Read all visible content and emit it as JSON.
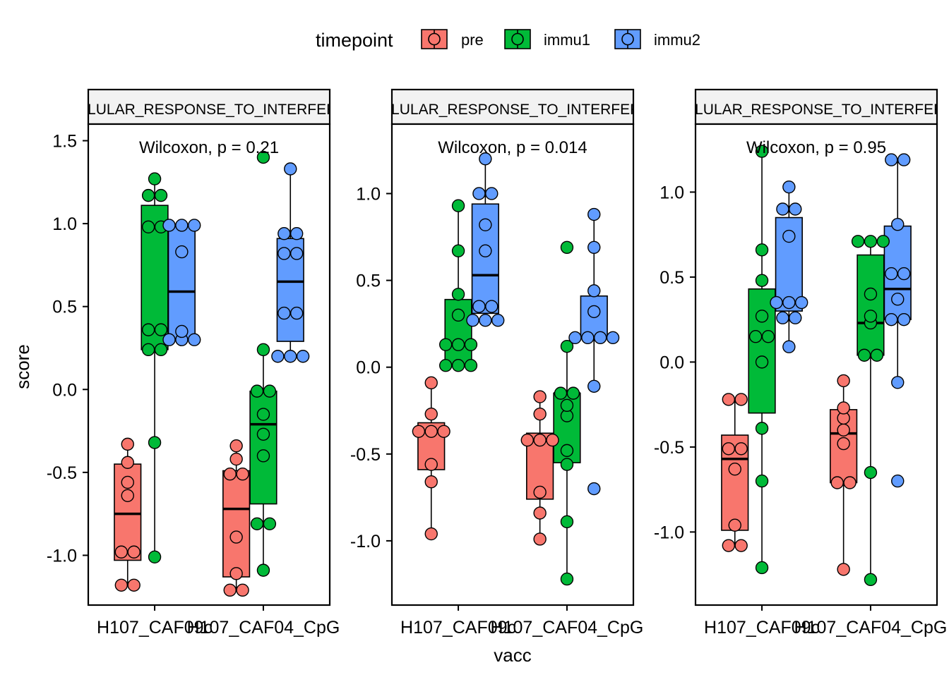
{
  "legend": {
    "title": "timepoint",
    "items": [
      {
        "label": "pre",
        "color": "#F8766D"
      },
      {
        "label": "immu1",
        "color": "#00BA38"
      },
      {
        "label": "immu2",
        "color": "#619CFF"
      }
    ]
  },
  "axis_titles": {
    "x": "vacc",
    "y": "score"
  },
  "chart_data": [
    {
      "type": "box",
      "strip_label": "CELLULAR_RESPONSE_TO_INTERFERON",
      "annotation": "Wilcoxon, p = 0.21",
      "categories": [
        "H107_CAF09c",
        "H107_CAF04_CpG"
      ],
      "ylim": [
        -1.3,
        1.6
      ],
      "yticks": [
        -1.0,
        -0.5,
        0.0,
        0.5,
        1.0,
        1.5
      ],
      "ytick_labels": [
        "-1.0",
        "-0.5",
        "0.0",
        "0.5",
        "1.0",
        "1.5"
      ],
      "series": [
        {
          "name": "pre",
          "points": [
            [
              -1.18,
              -1.18,
              -0.98,
              -0.98,
              -0.64,
              -0.56,
              -0.44,
              -0.33
            ],
            [
              -1.21,
              -1.21,
              -1.11,
              -0.89,
              -0.51,
              -0.51,
              -0.42,
              -0.34
            ]
          ],
          "box": [
            [
              -1.03,
              -0.75,
              -0.45,
              -1.18,
              -0.33
            ],
            [
              -1.13,
              -0.72,
              -0.49,
              -1.21,
              -0.34
            ]
          ]
        },
        {
          "name": "immu1",
          "points": [
            [
              -1.01,
              -0.32,
              0.24,
              0.24,
              0.36,
              0.36,
              0.98,
              0.98,
              1.17,
              1.17,
              1.27
            ],
            [
              -1.09,
              -0.81,
              -0.81,
              -0.4,
              -0.27,
              -0.15,
              -0.01,
              -0.01,
              0.24,
              1.4
            ]
          ],
          "box": [
            [
              0.24,
              0.36,
              1.11,
              -1.01,
              1.27
            ],
            [
              -0.69,
              -0.21,
              -0.01,
              -1.09,
              0.24
            ]
          ]
        },
        {
          "name": "immu2",
          "points": [
            [
              0.3,
              0.3,
              0.3,
              0.35,
              0.83,
              0.99,
              0.99,
              0.99
            ],
            [
              0.2,
              0.2,
              0.2,
              0.46,
              0.46,
              0.82,
              0.82,
              0.94,
              0.94,
              1.33
            ]
          ],
          "box": [
            [
              0.3,
              0.59,
              0.99,
              0.3,
              0.99
            ],
            [
              0.29,
              0.65,
              0.91,
              0.2,
              1.33
            ]
          ]
        }
      ]
    },
    {
      "type": "box",
      "strip_label": "CELLULAR_RESPONSE_TO_INTERFERON",
      "annotation": "Wilcoxon, p = 0.014",
      "categories": [
        "H107_CAF09c",
        "H107_CAF04_CpG"
      ],
      "ylim": [
        -1.37,
        1.4
      ],
      "yticks": [
        -1.0,
        -0.5,
        0.0,
        0.5,
        1.0
      ],
      "ytick_labels": [
        "-1.0",
        "-0.5",
        "0.0",
        "0.5",
        "1.0"
      ],
      "series": [
        {
          "name": "pre",
          "points": [
            [
              -0.96,
              -0.66,
              -0.56,
              -0.37,
              -0.37,
              -0.37,
              -0.27,
              -0.09
            ],
            [
              -0.99,
              -0.84,
              -0.72,
              -0.42,
              -0.42,
              -0.42,
              -0.27,
              -0.17
            ]
          ],
          "box": [
            [
              -0.59,
              -0.37,
              -0.32,
              -0.96,
              -0.09
            ],
            [
              -0.76,
              -0.42,
              -0.38,
              -0.99,
              -0.17
            ]
          ]
        },
        {
          "name": "immu1",
          "points": [
            [
              0.01,
              0.01,
              0.01,
              0.13,
              0.13,
              0.13,
              0.3,
              0.42,
              0.67,
              0.93
            ],
            [
              -1.22,
              -0.89,
              -0.56,
              -0.48,
              -0.28,
              -0.22,
              -0.15,
              -0.15,
              0.12,
              0.69
            ]
          ],
          "box": [
            [
              0.01,
              0.13,
              0.39,
              0.01,
              0.93
            ],
            [
              -0.55,
              -0.15,
              -0.15,
              -1.22,
              0.12
            ]
          ]
        },
        {
          "name": "immu2",
          "points": [
            [
              0.27,
              0.27,
              0.27,
              0.35,
              0.35,
              0.67,
              0.82,
              1.0,
              1.0,
              1.2
            ],
            [
              -0.7,
              -0.11,
              0.17,
              0.17,
              0.17,
              0.17,
              0.32,
              0.44,
              0.69,
              0.88
            ]
          ],
          "box": [
            [
              0.31,
              0.53,
              0.94,
              0.27,
              1.2
            ],
            [
              0.17,
              0.17,
              0.41,
              -0.11,
              0.88
            ]
          ]
        }
      ]
    },
    {
      "type": "box",
      "strip_label": "CELLULAR_RESPONSE_TO_INTERFERON",
      "annotation": "Wilcoxon, p = 0.95",
      "categories": [
        "H107_CAF09c",
        "H107_CAF04_CpG"
      ],
      "ylim": [
        -1.43,
        1.4
      ],
      "yticks": [
        -1.0,
        -0.5,
        0.0,
        0.5,
        1.0
      ],
      "ytick_labels": [
        "-1.0",
        "-0.5",
        "0.0",
        "0.5",
        "1.0"
      ],
      "series": [
        {
          "name": "pre",
          "points": [
            [
              -1.08,
              -1.08,
              -0.96,
              -0.63,
              -0.51,
              -0.51,
              -0.22,
              -0.22
            ],
            [
              -1.22,
              -0.71,
              -0.71,
              -0.48,
              -0.4,
              -0.33,
              -0.27,
              -0.11
            ]
          ],
          "box": [
            [
              -0.99,
              -0.57,
              -0.43,
              -1.08,
              -0.22
            ],
            [
              -0.71,
              -0.42,
              -0.28,
              -1.22,
              -0.11
            ]
          ]
        },
        {
          "name": "immu1",
          "points": [
            [
              -1.21,
              -0.7,
              -0.39,
              0.0,
              0.15,
              0.15,
              0.27,
              0.48,
              0.66,
              1.24
            ],
            [
              -1.28,
              -0.65,
              0.04,
              0.04,
              0.23,
              0.27,
              0.4,
              0.71,
              0.71,
              0.71
            ]
          ],
          "box": [
            [
              -0.3,
              0.15,
              0.43,
              -1.21,
              1.24
            ],
            [
              0.04,
              0.23,
              0.63,
              -1.28,
              0.71
            ]
          ]
        },
        {
          "name": "immu2",
          "points": [
            [
              0.09,
              0.26,
              0.26,
              0.35,
              0.35,
              0.35,
              0.74,
              0.9,
              0.9,
              1.03
            ],
            [
              -0.7,
              -0.12,
              0.25,
              0.25,
              0.37,
              0.52,
              0.52,
              0.81,
              1.19,
              1.19
            ]
          ],
          "box": [
            [
              0.3,
              0.35,
              0.85,
              0.09,
              1.03
            ],
            [
              0.25,
              0.43,
              0.8,
              -0.12,
              1.19
            ]
          ]
        }
      ]
    }
  ]
}
